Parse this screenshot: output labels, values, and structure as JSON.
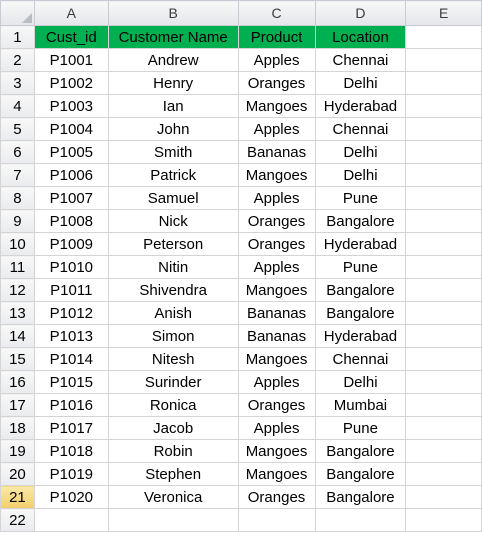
{
  "columns": [
    "A",
    "B",
    "C",
    "D",
    "E"
  ],
  "headers": [
    "Cust_id",
    "Customer Name",
    "Product",
    "Location"
  ],
  "active_row": "21",
  "colors": {
    "header_fill": "#00b050",
    "header_text": "#ffffff",
    "active_row_fill": "#f2cf6b"
  },
  "rows": [
    [
      "P1001",
      "Andrew",
      "Apples",
      "Chennai"
    ],
    [
      "P1002",
      "Henry",
      "Oranges",
      "Delhi"
    ],
    [
      "P1003",
      "Ian",
      "Mangoes",
      "Hyderabad"
    ],
    [
      "P1004",
      "John",
      "Apples",
      "Chennai"
    ],
    [
      "P1005",
      "Smith",
      "Bananas",
      "Delhi"
    ],
    [
      "P1006",
      "Patrick",
      "Mangoes",
      "Delhi"
    ],
    [
      "P1007",
      "Samuel",
      "Apples",
      "Pune"
    ],
    [
      "P1008",
      "Nick",
      "Oranges",
      "Bangalore"
    ],
    [
      "P1009",
      "Peterson",
      "Oranges",
      "Hyderabad"
    ],
    [
      "P1010",
      "Nitin",
      "Apples",
      "Pune"
    ],
    [
      "P1011",
      "Shivendra",
      "Mangoes",
      "Bangalore"
    ],
    [
      "P1012",
      "Anish",
      "Bananas",
      "Bangalore"
    ],
    [
      "P1013",
      "Simon",
      "Bananas",
      "Hyderabad"
    ],
    [
      "P1014",
      "Nitesh",
      "Mangoes",
      "Chennai"
    ],
    [
      "P1015",
      "Surinder",
      "Apples",
      "Delhi"
    ],
    [
      "P1016",
      "Ronica",
      "Oranges",
      "Mumbai"
    ],
    [
      "P1017",
      "Jacob",
      "Apples",
      "Pune"
    ],
    [
      "P1018",
      "Robin",
      "Mangoes",
      "Bangalore"
    ],
    [
      "P1019",
      "Stephen",
      "Mangoes",
      "Bangalore"
    ],
    [
      "P1020",
      "Veronica",
      "Oranges",
      "Bangalore"
    ]
  ],
  "row_numbers": [
    "1",
    "2",
    "3",
    "4",
    "5",
    "6",
    "7",
    "8",
    "9",
    "10",
    "11",
    "12",
    "13",
    "14",
    "15",
    "16",
    "17",
    "18",
    "19",
    "20",
    "21",
    "22"
  ]
}
